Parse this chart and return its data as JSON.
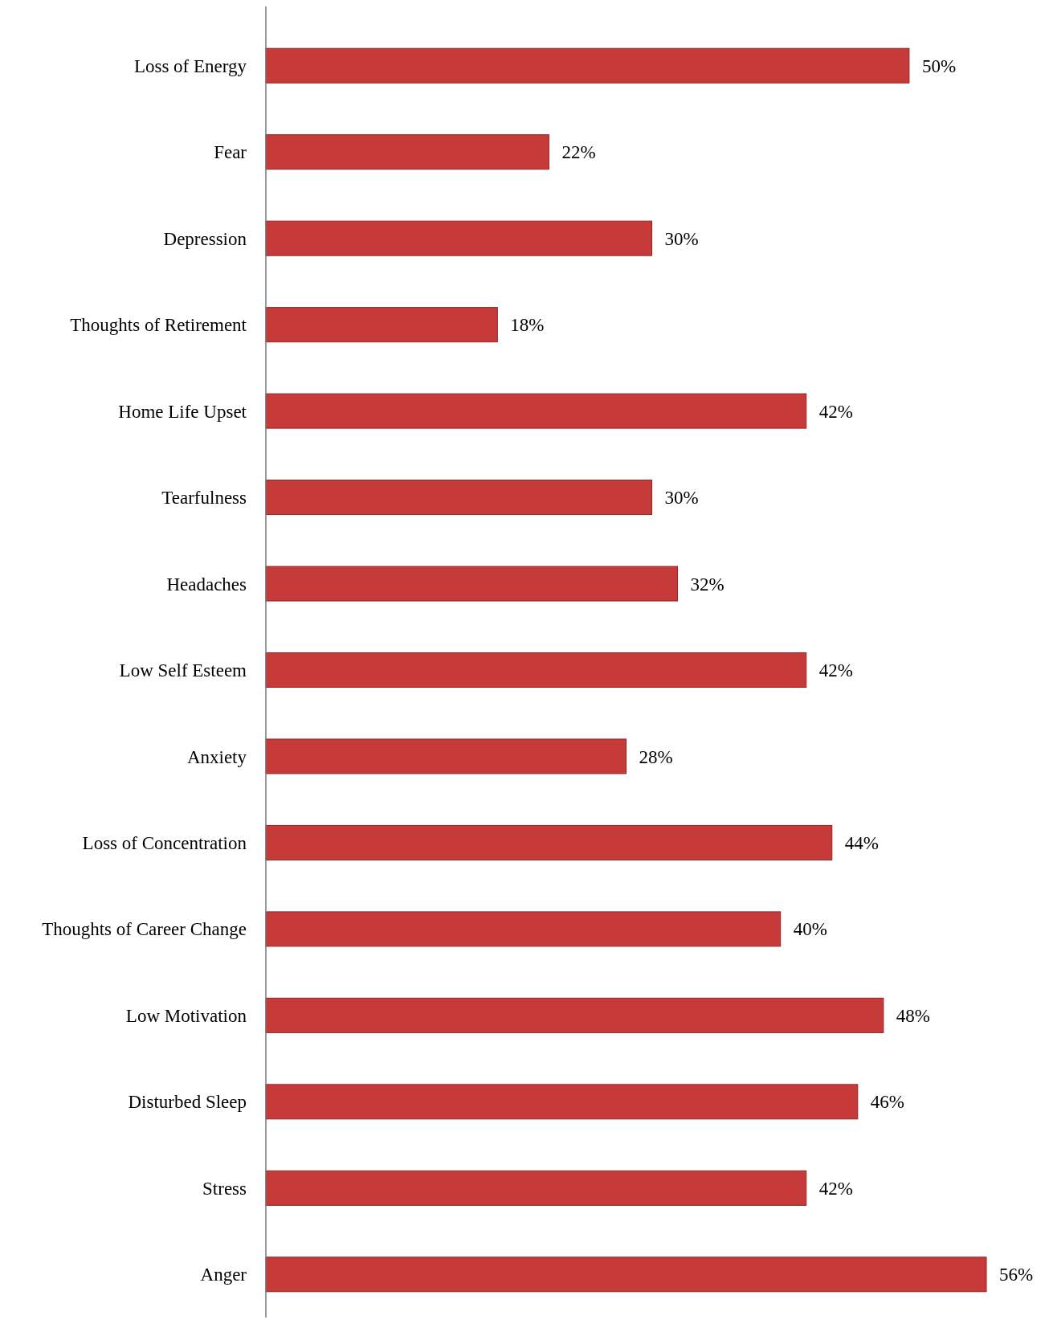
{
  "chart_data": {
    "type": "bar",
    "orientation": "horizontal",
    "categories": [
      "Loss of Energy",
      "Fear",
      "Depression",
      "Thoughts of Retirement",
      "Home Life Upset",
      "Tearfulness",
      "Headaches",
      "Low Self Esteem",
      "Anxiety",
      "Loss of Concentration",
      "Thoughts of Career Change",
      "Low Motivation",
      "Disturbed Sleep",
      "Stress",
      "Anger"
    ],
    "values": [
      50,
      22,
      30,
      18,
      42,
      30,
      32,
      42,
      28,
      44,
      40,
      48,
      46,
      42,
      56
    ],
    "value_labels": [
      "50%",
      "22%",
      "30%",
      "18%",
      "42%",
      "30%",
      "32%",
      "42%",
      "28%",
      "44%",
      "40%",
      "48%",
      "46%",
      "42%",
      "56%"
    ],
    "color": "#c63a3a"
  }
}
